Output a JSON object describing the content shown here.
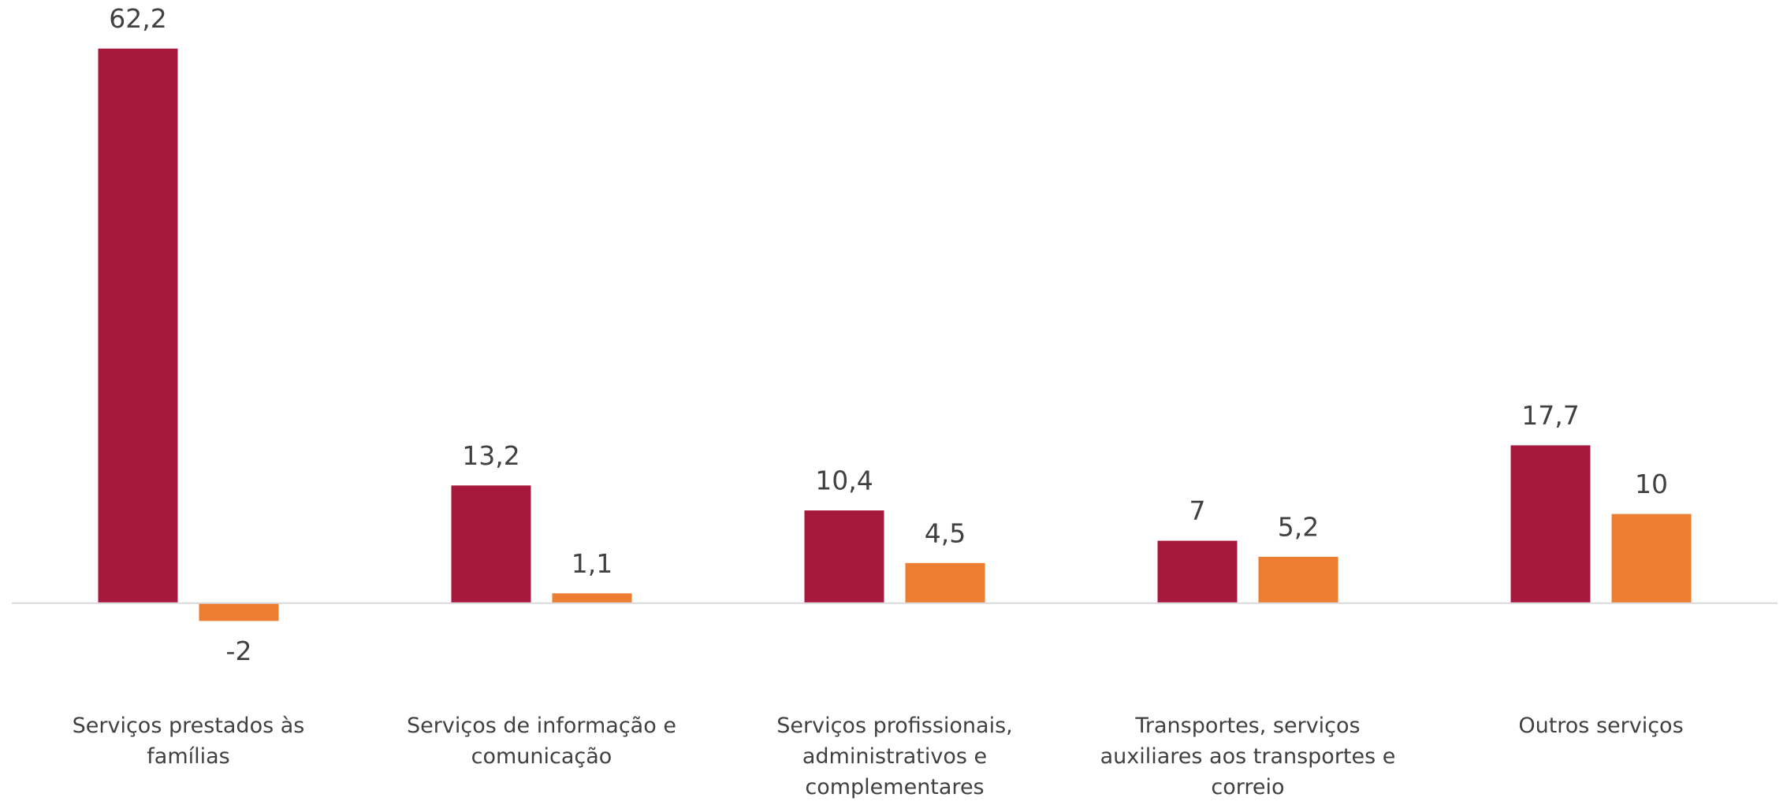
{
  "chart_data": {
    "type": "bar",
    "categories": [
      "Serviços prestados às famílias",
      "Serviços de informação e comunicação",
      "Serviços profissionais, administrativos e complementares",
      "Transportes, serviços auxiliares aos transportes e correio",
      "Outros serviços"
    ],
    "series": [
      {
        "color": "#a6193c",
        "values": [
          62.2,
          13.2,
          10.4,
          7,
          17.7
        ],
        "value_labels": [
          "62,2",
          "13,2",
          "10,4",
          "7",
          "17,7"
        ]
      },
      {
        "color": "#ed7d31",
        "values": [
          -2,
          1.1,
          4.5,
          5.2,
          10
        ],
        "value_labels": [
          "-2",
          "1,1",
          "4,5",
          "5,2",
          "10"
        ]
      }
    ],
    "ylim": [
      -10,
      65
    ]
  }
}
